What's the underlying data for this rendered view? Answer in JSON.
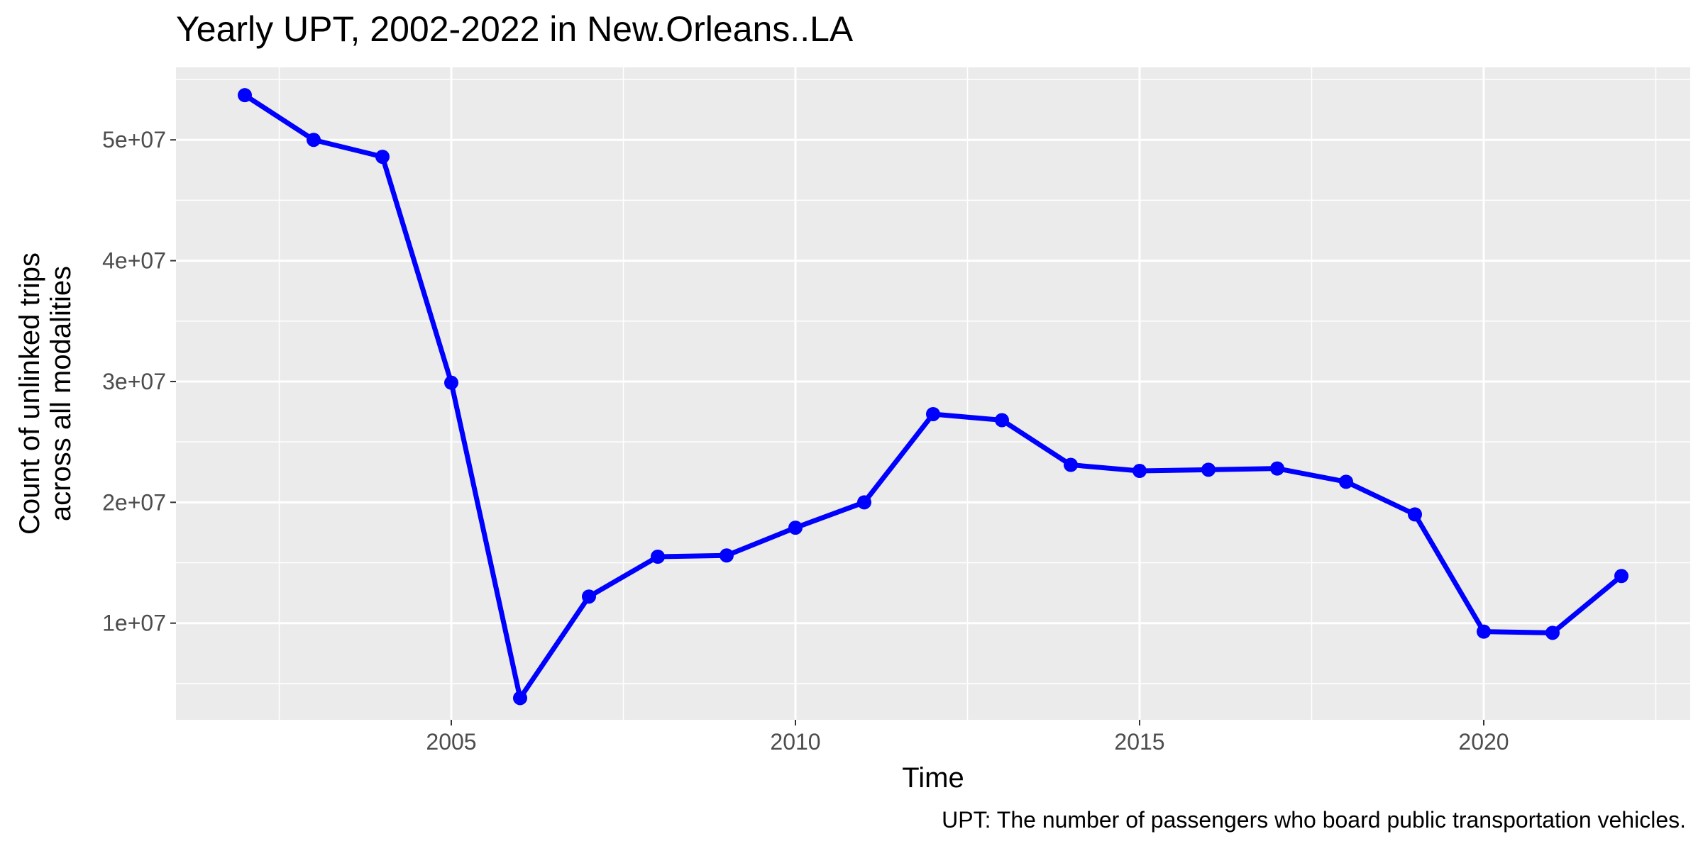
{
  "chart_data": {
    "type": "line",
    "title": "Yearly UPT, 2002-2022 in New.Orleans..LA",
    "xlabel": "Time",
    "ylabel_lines": [
      "Count of unlinked trips",
      "across all modalities"
    ],
    "caption": "UPT: The number of passengers who board public transportation vehicles.",
    "x_ticks": [
      2005,
      2010,
      2015,
      2020
    ],
    "x_tick_labels": [
      "2005",
      "2010",
      "2015",
      "2020"
    ],
    "y_ticks": [
      10000000,
      20000000,
      30000000,
      40000000,
      50000000
    ],
    "y_tick_labels": [
      "1e+07",
      "2e+07",
      "3e+07",
      "4e+07",
      "5e+07"
    ],
    "xlim": [
      2001,
      2023
    ],
    "ylim": [
      2000000,
      56000000
    ],
    "grid": true,
    "series": [
      {
        "color": "#0000ff",
        "x": [
          2002,
          2003,
          2004,
          2005,
          2006,
          2007,
          2008,
          2009,
          2010,
          2011,
          2012,
          2013,
          2014,
          2015,
          2016,
          2017,
          2018,
          2019,
          2020,
          2021,
          2022
        ],
        "values": [
          53700000,
          50000000,
          48600000,
          29900000,
          3800000,
          12200000,
          15500000,
          15600000,
          17900000,
          20000000,
          27300000,
          26800000,
          23100000,
          22600000,
          22700000,
          22800000,
          21700000,
          19000000,
          9300000,
          9200000,
          13900000
        ]
      }
    ]
  }
}
